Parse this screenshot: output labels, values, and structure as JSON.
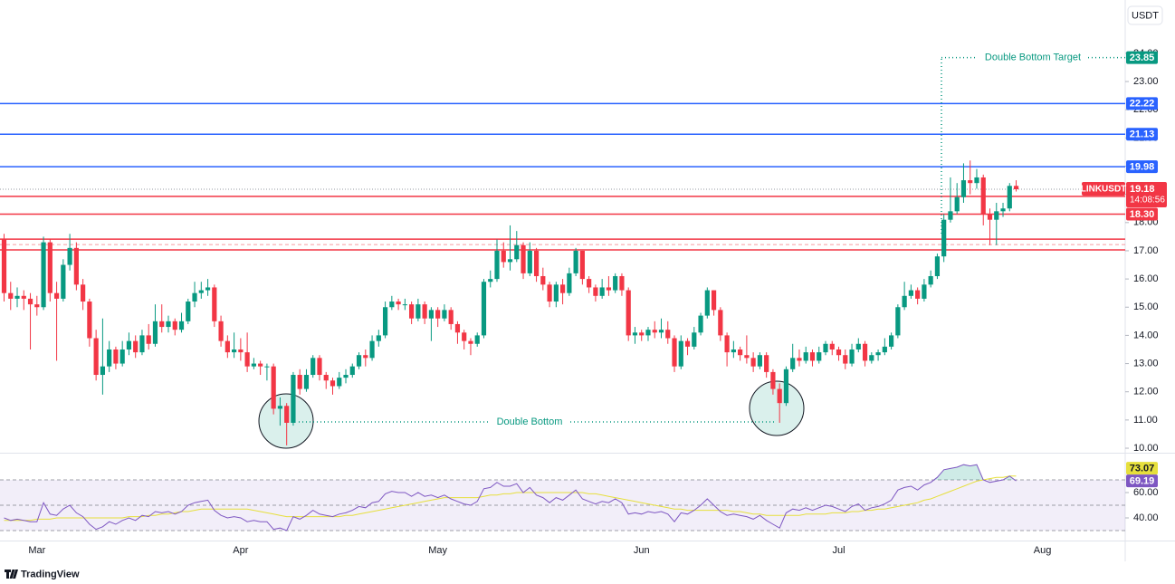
{
  "chart_data": {
    "type": "candlestick",
    "currency": "USDT",
    "categories": [
      null,
      null,
      null,
      null,
      null,
      "Mar",
      null,
      null,
      null,
      null,
      null,
      null,
      null,
      null,
      null,
      null,
      null,
      null,
      null,
      null,
      null,
      null,
      null,
      null,
      null,
      null,
      null,
      null,
      null,
      null,
      null,
      null,
      null,
      null,
      null,
      null,
      "Apr",
      null,
      null,
      null,
      null,
      null,
      null,
      null,
      null,
      null,
      null,
      null,
      null,
      null,
      null,
      null,
      null,
      null,
      null,
      null,
      null,
      null,
      null,
      null,
      null,
      null,
      null,
      null,
      null,
      null,
      "May",
      null,
      null,
      null,
      null,
      null,
      null,
      null,
      null,
      null,
      null,
      null,
      null,
      null,
      null,
      null,
      null,
      null,
      null,
      null,
      null,
      null,
      null,
      null,
      null,
      null,
      null,
      null,
      null,
      null,
      null,
      "Jun",
      null,
      null,
      null,
      null,
      null,
      null,
      null,
      null,
      null,
      null,
      null,
      null,
      null,
      null,
      null,
      null,
      null,
      null,
      null,
      null,
      null,
      null,
      null,
      null,
      null,
      null,
      null,
      null,
      null,
      "Jul",
      null,
      null,
      null,
      null,
      null,
      null,
      null,
      null,
      null,
      null,
      null,
      null,
      null,
      null,
      null,
      null,
      null,
      null,
      null,
      null,
      null,
      null,
      null,
      null,
      null,
      null,
      null,
      null,
      null,
      null,
      "Aug",
      null
    ],
    "series": [
      {
        "name": "LINKUSDT",
        "up_color": "#089981",
        "down_color": "#f23645",
        "open": [
          17.4,
          15.5,
          15.3,
          15.4,
          15.3,
          15.1,
          15.0,
          17.3,
          15.5,
          15.3,
          16.5,
          17.1,
          15.8,
          15.2,
          13.9,
          12.6,
          12.9,
          13.5,
          13.0,
          13.5,
          13.8,
          13.4,
          14.0,
          13.7,
          14.5,
          14.3,
          14.5,
          14.2,
          14.5,
          15.2,
          15.5,
          15.6,
          15.7,
          14.5,
          13.8,
          13.4,
          13.5,
          13.4,
          12.9,
          13.0,
          12.9,
          12.9,
          11.4,
          11.5,
          10.9,
          12.6,
          12.1,
          12.6,
          13.2,
          12.6,
          12.4,
          12.2,
          12.5,
          12.6,
          12.9,
          13.3,
          13.2,
          13.8,
          14.0,
          15.0,
          15.2,
          15.1,
          15.1,
          14.6,
          15.1,
          14.6,
          14.9,
          14.6,
          14.9,
          14.4,
          14.1,
          13.8,
          13.7,
          14.0,
          15.9,
          16.0,
          17.0,
          16.6,
          16.7,
          17.2,
          16.2,
          17.0,
          16.1,
          15.8,
          15.2,
          15.8,
          15.5,
          16.2,
          17.0,
          16.0,
          15.7,
          15.4,
          15.7,
          15.6,
          16.1,
          15.6,
          14.0,
          14.1,
          14.0,
          14.2,
          14.1,
          14.2,
          13.9,
          12.9,
          13.8,
          13.6,
          14.1,
          14.7,
          15.6,
          14.9,
          14.0,
          13.4,
          13.5,
          13.3,
          13.2,
          12.9,
          13.3,
          12.7,
          12.1,
          11.6,
          12.8,
          13.2,
          13.1,
          13.4,
          13.1,
          13.4,
          13.7,
          13.5,
          13.3,
          13.0,
          13.5,
          13.7,
          13.1,
          13.3,
          13.4,
          13.6,
          14.0,
          15.0,
          15.4,
          15.6,
          15.3,
          15.8,
          16.1,
          16.8,
          18.1,
          18.4,
          18.9,
          19.5,
          19.4,
          19.6,
          18.3,
          18.1,
          18.4,
          18.5,
          19.3,
          null,
          null,
          null,
          null,
          null
        ],
        "high": [
          17.6,
          15.9,
          15.7,
          15.6,
          15.5,
          15.4,
          17.5,
          17.4,
          15.9,
          16.7,
          17.6,
          17.3,
          16.0,
          15.3,
          14.2,
          14.6,
          13.8,
          13.6,
          13.8,
          14.1,
          14.0,
          14.2,
          14.4,
          15.1,
          15.1,
          14.7,
          14.6,
          14.8,
          15.3,
          15.9,
          15.9,
          16.0,
          15.8,
          14.7,
          14.0,
          14.1,
          13.9,
          14.1,
          13.2,
          13.1,
          13.0,
          13.0,
          11.8,
          11.6,
          12.7,
          12.8,
          12.8,
          13.3,
          13.3,
          12.7,
          12.5,
          12.7,
          12.8,
          13.0,
          13.4,
          13.5,
          14.0,
          14.2,
          15.2,
          15.4,
          15.3,
          15.3,
          15.2,
          15.3,
          15.2,
          15.0,
          15.0,
          15.1,
          15.0,
          14.5,
          14.2,
          13.9,
          14.1,
          16.0,
          16.3,
          17.4,
          17.3,
          17.9,
          17.7,
          17.3,
          17.3,
          17.1,
          16.4,
          15.9,
          15.9,
          16.0,
          16.4,
          17.1,
          17.0,
          16.1,
          15.8,
          16.0,
          16.1,
          16.2,
          16.2,
          15.7,
          14.3,
          14.2,
          14.3,
          14.5,
          14.6,
          14.5,
          14.0,
          14.0,
          13.9,
          14.3,
          14.8,
          15.7,
          15.6,
          15.0,
          14.1,
          13.8,
          13.6,
          14.0,
          13.4,
          13.4,
          13.4,
          12.8,
          12.3,
          12.9,
          13.7,
          13.5,
          13.6,
          13.5,
          13.6,
          13.8,
          13.8,
          13.6,
          13.5,
          13.7,
          13.9,
          13.8,
          13.4,
          13.5,
          13.9,
          14.1,
          15.1,
          15.9,
          15.8,
          15.7,
          16.0,
          16.3,
          16.9,
          18.3,
          19.6,
          19.4,
          20.1,
          20.2,
          19.9,
          19.7,
          18.5,
          18.7,
          18.7,
          19.4,
          19.5,
          null,
          null,
          null,
          null,
          null
        ],
        "low": [
          15.2,
          14.9,
          15.0,
          14.9,
          13.5,
          14.7,
          14.9,
          15.2,
          13.1,
          15.2,
          16.3,
          15.6,
          14.9,
          13.6,
          12.4,
          11.9,
          12.7,
          12.8,
          12.9,
          13.3,
          13.2,
          13.3,
          13.5,
          13.6,
          14.1,
          14.1,
          14.0,
          14.1,
          14.4,
          15.0,
          15.3,
          15.4,
          14.3,
          13.6,
          13.2,
          13.2,
          13.1,
          12.7,
          12.8,
          12.6,
          12.4,
          11.2,
          10.8,
          10.1,
          10.8,
          11.9,
          12.0,
          12.5,
          12.4,
          12.1,
          11.9,
          12.1,
          12.3,
          12.5,
          12.8,
          12.9,
          13.1,
          13.6,
          13.9,
          14.9,
          14.9,
          14.9,
          14.4,
          14.5,
          14.4,
          13.8,
          14.3,
          14.5,
          14.2,
          13.7,
          13.5,
          13.3,
          13.6,
          13.9,
          15.7,
          15.9,
          16.4,
          16.3,
          16.6,
          16.0,
          16.1,
          15.9,
          15.6,
          15.0,
          15.0,
          15.1,
          15.4,
          16.1,
          15.8,
          15.5,
          15.2,
          15.3,
          15.4,
          15.5,
          15.4,
          13.8,
          13.7,
          13.8,
          13.8,
          13.9,
          13.9,
          13.7,
          12.7,
          12.8,
          13.3,
          13.5,
          14.0,
          14.6,
          14.7,
          13.8,
          12.9,
          13.2,
          13.1,
          13.0,
          12.7,
          12.8,
          12.5,
          11.9,
          10.9,
          11.5,
          12.7,
          12.9,
          13.0,
          12.9,
          13.0,
          13.3,
          13.3,
          13.1,
          12.8,
          12.9,
          13.4,
          12.9,
          13.0,
          13.1,
          13.3,
          13.5,
          13.9,
          14.9,
          15.3,
          15.1,
          15.2,
          15.7,
          16.0,
          16.6,
          18.0,
          18.3,
          18.7,
          19.0,
          19.2,
          17.9,
          17.2,
          17.2,
          18.2,
          18.4,
          19.1,
          null,
          null,
          null,
          null,
          null
        ],
        "close": [
          15.5,
          15.3,
          15.4,
          15.3,
          15.1,
          15.0,
          17.3,
          15.5,
          15.3,
          16.5,
          17.1,
          15.8,
          15.2,
          13.9,
          12.6,
          12.9,
          13.5,
          13.0,
          13.5,
          13.8,
          13.4,
          14.0,
          13.7,
          14.5,
          14.3,
          14.5,
          14.2,
          14.5,
          15.2,
          15.5,
          15.6,
          15.7,
          14.5,
          13.8,
          13.4,
          13.5,
          13.4,
          12.9,
          13.0,
          12.9,
          12.9,
          11.4,
          11.5,
          10.9,
          12.6,
          12.1,
          12.6,
          13.2,
          12.6,
          12.4,
          12.2,
          12.5,
          12.6,
          12.9,
          13.3,
          13.2,
          13.8,
          14.0,
          15.0,
          15.2,
          15.1,
          15.1,
          14.6,
          15.1,
          14.6,
          14.9,
          14.6,
          14.9,
          14.4,
          14.1,
          13.8,
          13.7,
          14.0,
          15.9,
          16.0,
          17.0,
          16.6,
          16.7,
          17.2,
          16.2,
          17.0,
          16.1,
          15.8,
          15.2,
          15.8,
          15.5,
          16.2,
          17.0,
          16.0,
          15.7,
          15.4,
          15.7,
          15.6,
          16.1,
          15.6,
          14.0,
          14.1,
          14.0,
          14.2,
          14.1,
          14.2,
          13.9,
          12.9,
          13.8,
          13.6,
          14.1,
          14.7,
          15.6,
          14.9,
          14.0,
          13.4,
          13.5,
          13.3,
          13.2,
          12.9,
          13.3,
          12.7,
          12.1,
          11.6,
          12.8,
          13.2,
          13.1,
          13.4,
          13.1,
          13.4,
          13.7,
          13.5,
          13.3,
          13.0,
          13.5,
          13.7,
          13.1,
          13.3,
          13.4,
          13.6,
          14.0,
          15.0,
          15.4,
          15.6,
          15.3,
          15.8,
          16.1,
          16.8,
          18.1,
          18.4,
          18.9,
          19.5,
          19.4,
          19.6,
          18.3,
          18.1,
          18.4,
          18.5,
          19.3,
          19.18,
          null,
          null,
          null,
          null,
          null
        ]
      }
    ],
    "countdown": "14:08:56",
    "ylim": [
      9.84,
      25.73
    ],
    "yticks": [
      {
        "value": 10,
        "label": "10.00"
      },
      {
        "value": 11,
        "label": "11.00"
      },
      {
        "value": 12,
        "label": "12.00"
      },
      {
        "value": 13,
        "label": "13.00"
      },
      {
        "value": 14,
        "label": "14.00"
      },
      {
        "value": 15,
        "label": "15.00"
      },
      {
        "value": 16,
        "label": "16.00"
      },
      {
        "value": 17,
        "label": "17.00"
      },
      {
        "value": 18,
        "label": "18.00"
      },
      {
        "value": 19,
        "label": "19.00"
      },
      {
        "value": 20,
        "label": "20.00"
      },
      {
        "value": 21,
        "label": "21.00"
      },
      {
        "value": 22,
        "label": "22.00"
      },
      {
        "value": 23,
        "label": "23.00"
      },
      {
        "value": 24,
        "label": "24.00"
      }
    ],
    "levels": [
      {
        "value": 22.22,
        "color": "#2962ff"
      },
      {
        "value": 21.13,
        "color": "#2962ff"
      },
      {
        "value": 19.98,
        "color": "#2962ff"
      },
      {
        "value": 18.93,
        "color": "#f23645"
      },
      {
        "value": 18.3,
        "value_label": "18.30",
        "color": "#f23645"
      }
    ],
    "zone": {
      "lines": [
        17.41,
        17.03
      ],
      "mid": 17.22,
      "color": "#f23645"
    },
    "annotations": {
      "pattern_label": "Double Bottom",
      "target_label": "Double Bottom Target",
      "target": 23.85,
      "color": "#089981"
    },
    "rsi": {
      "color": "#7e57c2",
      "ma_color": "#e6df3c",
      "ylim": [
        20,
        90
      ],
      "yticks": [
        {
          "value": 40,
          "label": "40.00"
        },
        {
          "value": 60,
          "label": "60.00"
        }
      ],
      "levels": [
        70,
        50,
        30
      ],
      "values": [
        40,
        38,
        39,
        38,
        37,
        37,
        52,
        43,
        42,
        47,
        50,
        44,
        41,
        35,
        31,
        33,
        37,
        35,
        38,
        40,
        38,
        42,
        41,
        45,
        44,
        45,
        43,
        45,
        50,
        52,
        53,
        54,
        46,
        42,
        40,
        41,
        40,
        37,
        38,
        37,
        37,
        31,
        32,
        30,
        41,
        39,
        42,
        46,
        43,
        42,
        41,
        43,
        44,
        46,
        49,
        48,
        52,
        53,
        59,
        61,
        60,
        60,
        57,
        60,
        57,
        58,
        56,
        58,
        55,
        53,
        51,
        50,
        53,
        63,
        64,
        68,
        65,
        65,
        67,
        60,
        64,
        58,
        56,
        52,
        56,
        54,
        58,
        62,
        55,
        53,
        51,
        53,
        52,
        55,
        52,
        43,
        44,
        43,
        45,
        44,
        45,
        43,
        37,
        44,
        43,
        46,
        50,
        55,
        50,
        45,
        42,
        43,
        42,
        41,
        39,
        42,
        38,
        35,
        32,
        44,
        47,
        46,
        48,
        46,
        48,
        50,
        49,
        47,
        45,
        49,
        51,
        46,
        48,
        49,
        51,
        54,
        62,
        64,
        65,
        62,
        66,
        68,
        72,
        78,
        79,
        80,
        82,
        81,
        82,
        70,
        68,
        69,
        70,
        73,
        69.19,
        null,
        null,
        null,
        null,
        null
      ],
      "ma_values": [
        38,
        38,
        38,
        38,
        38,
        39,
        39,
        39,
        40,
        40,
        40,
        40,
        40,
        40,
        40,
        40,
        40,
        40,
        40,
        41,
        41,
        41,
        42,
        42,
        43,
        43,
        44,
        45,
        45,
        46,
        47,
        47,
        47,
        47,
        47,
        47,
        47,
        47,
        46,
        45,
        44,
        43,
        42,
        41,
        41,
        41,
        41,
        41,
        41,
        41,
        41,
        41,
        42,
        42,
        43,
        44,
        45,
        46,
        47,
        48,
        49,
        50,
        51,
        52,
        53,
        54,
        55,
        56,
        56,
        56,
        56,
        56,
        56,
        57,
        58,
        58,
        59,
        59,
        60,
        60,
        60,
        60,
        60,
        60,
        60,
        60,
        60,
        60,
        60,
        59,
        59,
        58,
        57,
        56,
        55,
        54,
        53,
        52,
        51,
        50,
        49,
        48,
        47,
        47,
        46,
        46,
        46,
        46,
        46,
        46,
        46,
        45,
        45,
        44,
        43,
        43,
        42,
        42,
        42,
        42,
        42,
        42,
        43,
        43,
        43,
        43,
        44,
        44,
        44,
        45,
        45,
        46,
        46,
        47,
        47,
        48,
        49,
        50,
        51,
        52,
        54,
        55,
        57,
        59,
        61,
        63,
        65,
        67,
        69,
        70,
        71,
        72,
        72,
        73,
        73.07,
        null,
        null,
        null,
        null,
        null
      ]
    },
    "brand": "TradingView"
  }
}
